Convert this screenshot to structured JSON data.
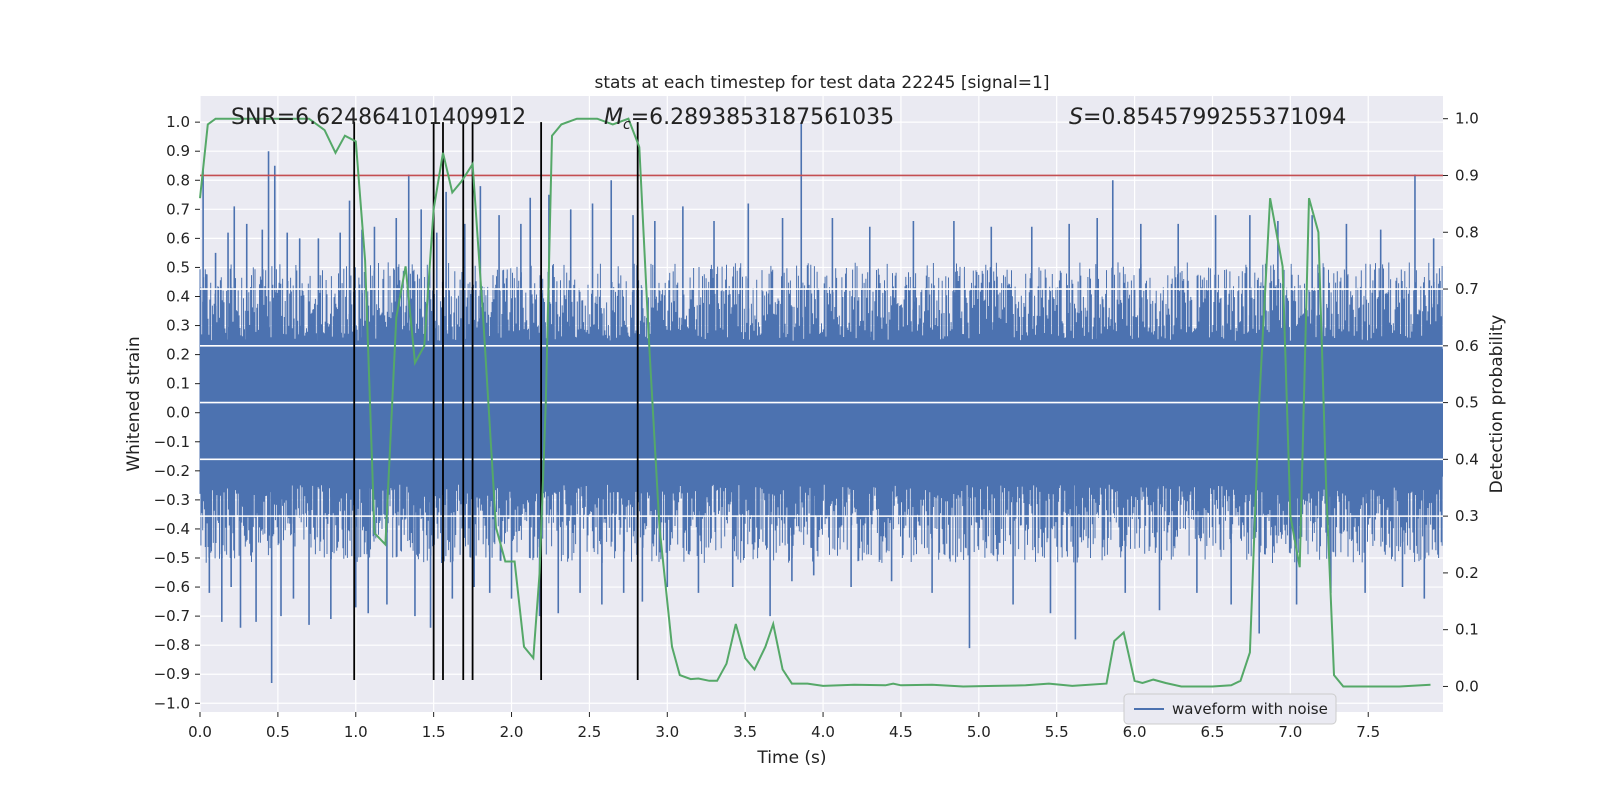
{
  "chart_data": {
    "type": "line",
    "title": "stats at each timestep for test data 22245 [signal=1]",
    "xlabel": "Time (s)",
    "ylabel_left": "Whitened strain",
    "ylabel_right": "Detection probability",
    "xlim": [
      0.0,
      7.98
    ],
    "ylim_left": [
      -1.03,
      1.09
    ],
    "ylim_right": [
      -0.045,
      1.04
    ],
    "x_ticks": [
      "0.0",
      "0.5",
      "1.0",
      "1.5",
      "2.0",
      "2.5",
      "3.0",
      "3.5",
      "4.0",
      "4.5",
      "5.0",
      "5.5",
      "6.0",
      "6.5",
      "7.0",
      "7.5"
    ],
    "x_tick_values": [
      0.0,
      0.5,
      1.0,
      1.5,
      2.0,
      2.5,
      3.0,
      3.5,
      4.0,
      4.5,
      5.0,
      5.5,
      6.0,
      6.5,
      7.0,
      7.5
    ],
    "y_left_ticks": [
      "1.0",
      "0.9",
      "0.8",
      "0.7",
      "0.6",
      "0.5",
      "0.4",
      "0.3",
      "0.2",
      "0.1",
      "0.0",
      "−0.1",
      "−0.2",
      "−0.3",
      "−0.4",
      "−0.5",
      "−0.6",
      "−0.7",
      "−0.8",
      "−0.9",
      "−1.0"
    ],
    "y_left_tick_values": [
      1.0,
      0.9,
      0.8,
      0.7,
      0.6,
      0.5,
      0.4,
      0.3,
      0.2,
      0.1,
      0.0,
      -0.1,
      -0.2,
      -0.3,
      -0.4,
      -0.5,
      -0.6,
      -0.7,
      -0.8,
      -0.9,
      -1.0
    ],
    "y_right_ticks": [
      "1.0",
      "0.9",
      "0.8",
      "0.7",
      "0.6",
      "0.5",
      "0.4",
      "0.3",
      "0.2",
      "0.1",
      "0.0"
    ],
    "y_right_tick_values": [
      1.0,
      0.9,
      0.8,
      0.7,
      0.6,
      0.5,
      0.4,
      0.3,
      0.2,
      0.1,
      0.0
    ],
    "annotations": {
      "snr": "SNR=6.624864101409912",
      "mc_symbol": "M",
      "mc_sub": "c",
      "mc_value": "=6.2893853187561035",
      "s_symbol": "S",
      "s_value": "=0.8545799255371094"
    },
    "waveform": {
      "name": "waveform with noise",
      "color": "#4c72b0",
      "core_amplitude": 0.22,
      "typical_amplitude": 0.45,
      "peaks": [
        {
          "t": 0.02,
          "v": 0.84
        },
        {
          "t": 0.06,
          "v": -0.62
        },
        {
          "t": 0.1,
          "v": 0.55
        },
        {
          "t": 0.14,
          "v": -0.72
        },
        {
          "t": 0.18,
          "v": 0.62
        },
        {
          "t": 0.2,
          "v": -0.6
        },
        {
          "t": 0.22,
          "v": 0.71
        },
        {
          "t": 0.26,
          "v": -0.74
        },
        {
          "t": 0.3,
          "v": 0.65
        },
        {
          "t": 0.36,
          "v": -0.72
        },
        {
          "t": 0.4,
          "v": 0.63
        },
        {
          "t": 0.44,
          "v": 0.9
        },
        {
          "t": 0.46,
          "v": -0.93
        },
        {
          "t": 0.48,
          "v": 0.85
        },
        {
          "t": 0.52,
          "v": -0.7
        },
        {
          "t": 0.56,
          "v": 0.62
        },
        {
          "t": 0.6,
          "v": -0.64
        },
        {
          "t": 0.64,
          "v": 0.6
        },
        {
          "t": 0.7,
          "v": -0.73
        },
        {
          "t": 0.76,
          "v": 0.6
        },
        {
          "t": 0.84,
          "v": -0.71
        },
        {
          "t": 0.9,
          "v": 0.62
        },
        {
          "t": 0.96,
          "v": 0.73
        },
        {
          "t": 1.0,
          "v": -0.67
        },
        {
          "t": 1.04,
          "v": 0.63
        },
        {
          "t": 1.08,
          "v": -0.69
        },
        {
          "t": 1.12,
          "v": 0.64
        },
        {
          "t": 1.2,
          "v": -0.66
        },
        {
          "t": 1.26,
          "v": 0.67
        },
        {
          "t": 1.34,
          "v": 0.82
        },
        {
          "t": 1.38,
          "v": -0.7
        },
        {
          "t": 1.42,
          "v": 0.7
        },
        {
          "t": 1.48,
          "v": -0.74
        },
        {
          "t": 1.52,
          "v": 0.62
        },
        {
          "t": 1.58,
          "v": 0.76
        },
        {
          "t": 1.62,
          "v": -0.64
        },
        {
          "t": 1.7,
          "v": 0.65
        },
        {
          "t": 1.76,
          "v": -0.6
        },
        {
          "t": 1.8,
          "v": 0.78
        },
        {
          "t": 1.86,
          "v": -0.62
        },
        {
          "t": 1.92,
          "v": 0.68
        },
        {
          "t": 2.0,
          "v": -0.64
        },
        {
          "t": 2.06,
          "v": 0.65
        },
        {
          "t": 2.12,
          "v": 0.74
        },
        {
          "t": 2.18,
          "v": -0.7
        },
        {
          "t": 2.24,
          "v": 0.75
        },
        {
          "t": 2.3,
          "v": -0.69
        },
        {
          "t": 2.38,
          "v": 0.7
        },
        {
          "t": 2.44,
          "v": -0.62
        },
        {
          "t": 2.52,
          "v": 0.72
        },
        {
          "t": 2.58,
          "v": -0.66
        },
        {
          "t": 2.64,
          "v": 0.8
        },
        {
          "t": 2.72,
          "v": -0.62
        },
        {
          "t": 2.78,
          "v": 0.68
        },
        {
          "t": 2.84,
          "v": -0.65
        },
        {
          "t": 2.92,
          "v": 0.66
        },
        {
          "t": 3.0,
          "v": -0.6
        },
        {
          "t": 3.1,
          "v": 0.71
        },
        {
          "t": 3.2,
          "v": -0.62
        },
        {
          "t": 3.3,
          "v": 0.66
        },
        {
          "t": 3.42,
          "v": -0.6
        },
        {
          "t": 3.52,
          "v": 0.72
        },
        {
          "t": 3.66,
          "v": -0.7
        },
        {
          "t": 3.74,
          "v": 0.67
        },
        {
          "t": 3.8,
          "v": -0.58
        },
        {
          "t": 3.86,
          "v": 1.0
        },
        {
          "t": 3.94,
          "v": -0.56
        },
        {
          "t": 4.06,
          "v": 0.67
        },
        {
          "t": 4.18,
          "v": -0.6
        },
        {
          "t": 4.3,
          "v": 0.64
        },
        {
          "t": 4.44,
          "v": -0.58
        },
        {
          "t": 4.58,
          "v": 0.66
        },
        {
          "t": 4.7,
          "v": -0.62
        },
        {
          "t": 4.84,
          "v": 0.66
        },
        {
          "t": 4.94,
          "v": -0.81
        },
        {
          "t": 5.08,
          "v": 0.64
        },
        {
          "t": 5.22,
          "v": -0.66
        },
        {
          "t": 5.34,
          "v": 0.64
        },
        {
          "t": 5.46,
          "v": -0.69
        },
        {
          "t": 5.58,
          "v": 0.65
        },
        {
          "t": 5.62,
          "v": -0.78
        },
        {
          "t": 5.76,
          "v": 0.67
        },
        {
          "t": 5.86,
          "v": 0.8
        },
        {
          "t": 5.94,
          "v": -0.62
        },
        {
          "t": 6.04,
          "v": 0.65
        },
        {
          "t": 6.16,
          "v": -0.68
        },
        {
          "t": 6.28,
          "v": 0.65
        },
        {
          "t": 6.4,
          "v": -0.62
        },
        {
          "t": 6.52,
          "v": 0.68
        },
        {
          "t": 6.62,
          "v": -0.66
        },
        {
          "t": 6.74,
          "v": 0.68
        },
        {
          "t": 6.8,
          "v": -0.76
        },
        {
          "t": 6.92,
          "v": 0.66
        },
        {
          "t": 7.04,
          "v": -0.66
        },
        {
          "t": 7.14,
          "v": 0.68
        },
        {
          "t": 7.26,
          "v": -0.62
        },
        {
          "t": 7.36,
          "v": 0.65
        },
        {
          "t": 7.48,
          "v": -0.62
        },
        {
          "t": 7.58,
          "v": 0.63
        },
        {
          "t": 7.72,
          "v": -0.6
        },
        {
          "t": 7.8,
          "v": 0.82
        },
        {
          "t": 7.86,
          "v": -0.64
        },
        {
          "t": 7.92,
          "v": 0.6
        }
      ]
    },
    "detection_probability": {
      "color": "#55a868",
      "points": [
        [
          0.0,
          0.86
        ],
        [
          0.05,
          0.99
        ],
        [
          0.1,
          1.0
        ],
        [
          0.2,
          1.0
        ],
        [
          0.4,
          1.0
        ],
        [
          0.6,
          1.0
        ],
        [
          0.7,
          1.0
        ],
        [
          0.8,
          0.98
        ],
        [
          0.87,
          0.94
        ],
        [
          0.93,
          0.97
        ],
        [
          1.0,
          0.96
        ],
        [
          1.06,
          0.75
        ],
        [
          1.12,
          0.27
        ],
        [
          1.19,
          0.25
        ],
        [
          1.26,
          0.65
        ],
        [
          1.32,
          0.74
        ],
        [
          1.38,
          0.57
        ],
        [
          1.44,
          0.6
        ],
        [
          1.5,
          0.84
        ],
        [
          1.56,
          0.94
        ],
        [
          1.62,
          0.87
        ],
        [
          1.68,
          0.89
        ],
        [
          1.75,
          0.92
        ],
        [
          1.82,
          0.64
        ],
        [
          1.9,
          0.28
        ],
        [
          1.96,
          0.22
        ],
        [
          2.02,
          0.22
        ],
        [
          2.08,
          0.07
        ],
        [
          2.14,
          0.05
        ],
        [
          2.18,
          0.2
        ],
        [
          2.22,
          0.5
        ],
        [
          2.26,
          0.97
        ],
        [
          2.32,
          0.99
        ],
        [
          2.42,
          1.0
        ],
        [
          2.55,
          1.0
        ],
        [
          2.65,
          0.99
        ],
        [
          2.75,
          1.0
        ],
        [
          2.82,
          0.95
        ],
        [
          2.88,
          0.62
        ],
        [
          2.95,
          0.28
        ],
        [
          3.03,
          0.07
        ],
        [
          3.08,
          0.02
        ],
        [
          3.15,
          0.013
        ],
        [
          3.2,
          0.014
        ],
        [
          3.27,
          0.01
        ],
        [
          3.32,
          0.01
        ],
        [
          3.38,
          0.04
        ],
        [
          3.44,
          0.11
        ],
        [
          3.5,
          0.05
        ],
        [
          3.56,
          0.03
        ],
        [
          3.63,
          0.07
        ],
        [
          3.68,
          0.11
        ],
        [
          3.74,
          0.03
        ],
        [
          3.8,
          0.005
        ],
        [
          3.9,
          0.005
        ],
        [
          4.0,
          0.001
        ],
        [
          4.2,
          0.003
        ],
        [
          4.4,
          0.002
        ],
        [
          4.45,
          0.005
        ],
        [
          4.5,
          0.002
        ],
        [
          4.7,
          0.003
        ],
        [
          4.9,
          0.0
        ],
        [
          5.1,
          0.001
        ],
        [
          5.3,
          0.002
        ],
        [
          5.45,
          0.005
        ],
        [
          5.6,
          0.001
        ],
        [
          5.82,
          0.005
        ],
        [
          5.87,
          0.08
        ],
        [
          5.93,
          0.095
        ],
        [
          6.0,
          0.01
        ],
        [
          6.05,
          0.006
        ],
        [
          6.12,
          0.012
        ],
        [
          6.2,
          0.006
        ],
        [
          6.3,
          0.0
        ],
        [
          6.5,
          0.0
        ],
        [
          6.62,
          0.002
        ],
        [
          6.68,
          0.01
        ],
        [
          6.74,
          0.06
        ],
        [
          6.8,
          0.5
        ],
        [
          6.87,
          0.86
        ],
        [
          6.95,
          0.74
        ],
        [
          7.0,
          0.3
        ],
        [
          7.06,
          0.21
        ],
        [
          7.12,
          0.86
        ],
        [
          7.18,
          0.8
        ],
        [
          7.23,
          0.35
        ],
        [
          7.28,
          0.02
        ],
        [
          7.34,
          0.0
        ],
        [
          7.5,
          0.0
        ],
        [
          7.7,
          0.0
        ],
        [
          7.9,
          0.003
        ]
      ]
    },
    "threshold": {
      "value": 0.9,
      "color": "#c44e52"
    },
    "vertical_markers": [
      0.99,
      1.5,
      1.56,
      1.69,
      1.75,
      2.19,
      2.81
    ],
    "vertical_markers_range": [
      -0.92,
      1.0
    ],
    "legend": {
      "label": "waveform with noise",
      "position": "lower-right"
    },
    "grid": true
  }
}
